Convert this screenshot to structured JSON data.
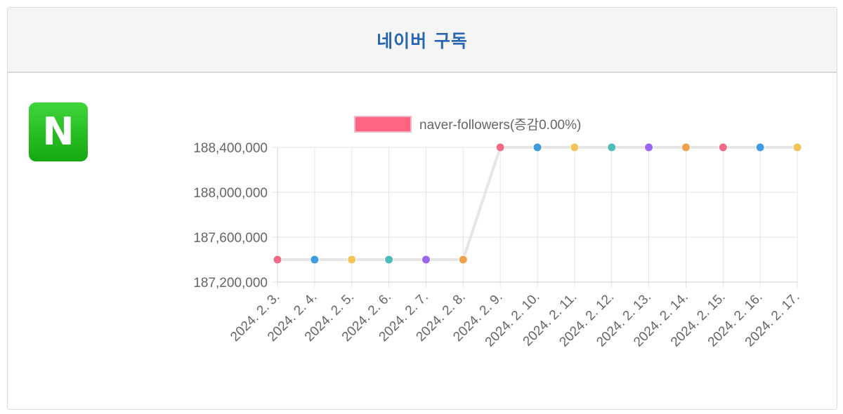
{
  "card": {
    "title": "네이버 구독",
    "logo_letter": "N"
  },
  "colors": {
    "title": "#2a66b0",
    "logo": "#22b31a",
    "line": "#e6e6e6",
    "legend_swatch": "#ff6384",
    "grid": "#e5e5e5",
    "point_palette": [
      "#f16b86",
      "#3d9be0",
      "#f4c35a",
      "#4dbcb8",
      "#9a66f2",
      "#f0a14e"
    ]
  },
  "chart_data": {
    "type": "line",
    "x": [
      "2024. 2. 3.",
      "2024. 2. 4.",
      "2024. 2. 5.",
      "2024. 2. 6.",
      "2024. 2. 7.",
      "2024. 2. 8.",
      "2024. 2. 9.",
      "2024. 2. 10.",
      "2024. 2. 11.",
      "2024. 2. 12.",
      "2024. 2. 13.",
      "2024. 2. 14.",
      "2024. 2. 15.",
      "2024. 2. 16.",
      "2024. 2. 17."
    ],
    "series": [
      {
        "name": "naver-followers(증감0.00%)",
        "values": [
          187400000,
          187400000,
          187400000,
          187400000,
          187400000,
          187400000,
          188400000,
          188400000,
          188400000,
          188400000,
          188400000,
          188400000,
          188400000,
          188400000,
          188400000
        ]
      }
    ],
    "yticks": [
      "188,400,000",
      "188,000,000",
      "187,600,000",
      "187,200,000"
    ],
    "ytick_values": [
      188400000,
      188000000,
      187600000,
      187200000
    ],
    "ylim": [
      187200000,
      188400000
    ],
    "grid": true,
    "legend_position": "top"
  }
}
